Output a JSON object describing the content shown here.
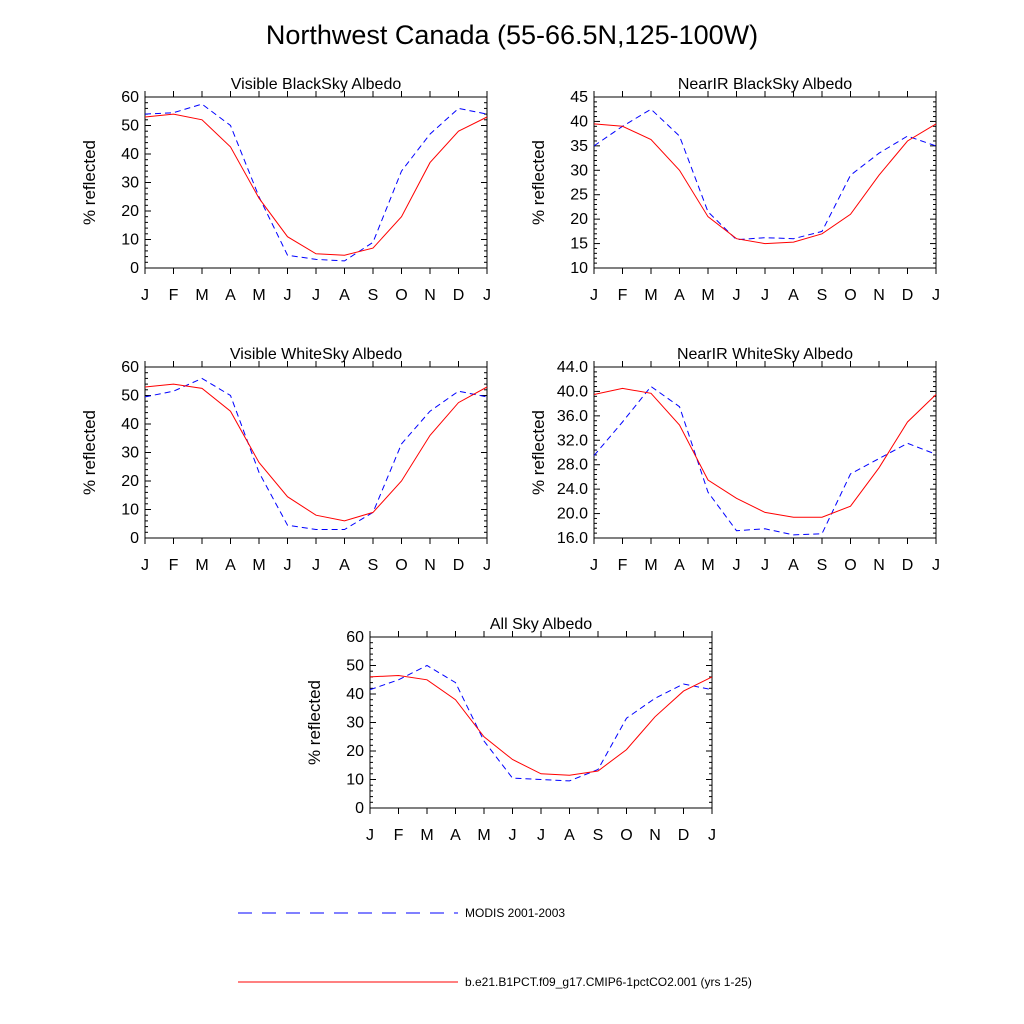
{
  "title": "Northwest Canada (55-66.5N,125-100W)",
  "legend": {
    "modis": {
      "label": "MODIS 2001-2003",
      "color": "#0000ff"
    },
    "model": {
      "label": "b.e21.B1PCT.f09_g17.CMIP6-1pctCO2.001 (yrs 1-25)",
      "color": "#ff0000"
    }
  },
  "chart_data": [
    {
      "type": "line",
      "title": "Visible BlackSky Albedo",
      "ylabel": "% reflected",
      "x": [
        "J",
        "F",
        "M",
        "A",
        "M",
        "J",
        "J",
        "A",
        "S",
        "O",
        "N",
        "D",
        "J"
      ],
      "ylim": [
        0,
        60
      ],
      "yticks": [
        "0",
        "10",
        "20",
        "30",
        "40",
        "50",
        "60"
      ],
      "series": [
        {
          "name": "MODIS 2001-2003",
          "style": "dashed",
          "color": "#0000ff",
          "values": [
            54,
            54.5,
            57.5,
            50,
            25,
            4.5,
            3,
            2.5,
            9,
            34,
            47,
            56,
            54
          ]
        },
        {
          "name": "b.e21.B1PCT.f09_g17.CMIP6-1pctCO2.001 (yrs 1-25)",
          "style": "solid",
          "color": "#ff0000",
          "values": [
            53,
            54,
            52,
            42.5,
            24.5,
            11,
            5,
            4.5,
            7,
            18,
            37,
            48,
            53
          ]
        }
      ]
    },
    {
      "type": "line",
      "title": "NearIR BlackSky Albedo",
      "ylabel": "% reflected",
      "x": [
        "J",
        "F",
        "M",
        "A",
        "M",
        "J",
        "J",
        "A",
        "S",
        "O",
        "N",
        "D",
        "J"
      ],
      "ylim": [
        10,
        45
      ],
      "yticks": [
        "10",
        "15",
        "20",
        "25",
        "30",
        "35",
        "40",
        "45"
      ],
      "series": [
        {
          "name": "MODIS 2001-2003",
          "style": "dashed",
          "color": "#0000ff",
          "values": [
            35,
            39,
            42.5,
            37,
            21.5,
            15.8,
            16.2,
            16,
            17.5,
            29,
            33.5,
            37,
            35
          ]
        },
        {
          "name": "b.e21.B1PCT.f09_g17.CMIP6-1pctCO2.001 (yrs 1-25)",
          "style": "solid",
          "color": "#ff0000",
          "values": [
            39.5,
            39,
            36.3,
            30,
            20.5,
            16,
            15,
            15.3,
            17,
            21,
            29,
            36,
            39.5
          ]
        }
      ]
    },
    {
      "type": "line",
      "title": "Visible WhiteSky Albedo",
      "ylabel": "% reflected",
      "x": [
        "J",
        "F",
        "M",
        "A",
        "M",
        "J",
        "J",
        "A",
        "S",
        "O",
        "N",
        "D",
        "J"
      ],
      "ylim": [
        0,
        60
      ],
      "yticks": [
        "0",
        "10",
        "20",
        "30",
        "40",
        "50",
        "60"
      ],
      "series": [
        {
          "name": "MODIS 2001-2003",
          "style": "dashed",
          "color": "#0000ff",
          "values": [
            49.5,
            51.5,
            56,
            50,
            23,
            4.5,
            3,
            3,
            9,
            33,
            44.5,
            51.5,
            49.5
          ]
        },
        {
          "name": "b.e21.B1PCT.f09_g17.CMIP6-1pctCO2.001 (yrs 1-25)",
          "style": "solid",
          "color": "#ff0000",
          "values": [
            53,
            54,
            52.5,
            44.5,
            26.5,
            14.5,
            8,
            6,
            9,
            20,
            36,
            47.5,
            53
          ]
        }
      ]
    },
    {
      "type": "line",
      "title": "NearIR WhiteSky Albedo",
      "ylabel": "% reflected",
      "x": [
        "J",
        "F",
        "M",
        "A",
        "M",
        "J",
        "J",
        "A",
        "S",
        "O",
        "N",
        "D",
        "J"
      ],
      "ylim": [
        16,
        44
      ],
      "yticks": [
        "16.0",
        "20.0",
        "24.0",
        "28.0",
        "32.0",
        "36.0",
        "40.0",
        "44.0"
      ],
      "series": [
        {
          "name": "MODIS 2001-2003",
          "style": "dashed",
          "color": "#0000ff",
          "values": [
            29.5,
            35,
            40.8,
            37.5,
            23.5,
            17.2,
            17.5,
            16.5,
            16.7,
            26.5,
            29,
            31.5,
            29.7
          ]
        },
        {
          "name": "b.e21.B1PCT.f09_g17.CMIP6-1pctCO2.001 (yrs 1-25)",
          "style": "solid",
          "color": "#ff0000",
          "values": [
            39.5,
            40.5,
            39.7,
            34.5,
            25.5,
            22.5,
            20.2,
            19.4,
            19.4,
            21.2,
            27.5,
            35,
            39.5
          ]
        }
      ]
    },
    {
      "type": "line",
      "title": "All Sky Albedo",
      "ylabel": "% reflected",
      "x": [
        "J",
        "F",
        "M",
        "A",
        "M",
        "J",
        "J",
        "A",
        "S",
        "O",
        "N",
        "D",
        "J"
      ],
      "ylim": [
        0,
        60
      ],
      "yticks": [
        "0",
        "10",
        "20",
        "30",
        "40",
        "50",
        "60"
      ],
      "series": [
        {
          "name": "MODIS 2001-2003",
          "style": "dashed",
          "color": "#0000ff",
          "values": [
            41.5,
            45,
            50,
            44,
            23.5,
            10.5,
            10,
            9.5,
            13.5,
            31.5,
            38.5,
            43.5,
            41.5
          ]
        },
        {
          "name": "b.e21.B1PCT.f09_g17.CMIP6-1pctCO2.001 (yrs 1-25)",
          "style": "solid",
          "color": "#ff0000",
          "values": [
            46,
            46.5,
            45,
            38,
            25,
            17,
            12,
            11.5,
            13,
            20.5,
            32,
            41,
            46
          ]
        }
      ]
    }
  ]
}
